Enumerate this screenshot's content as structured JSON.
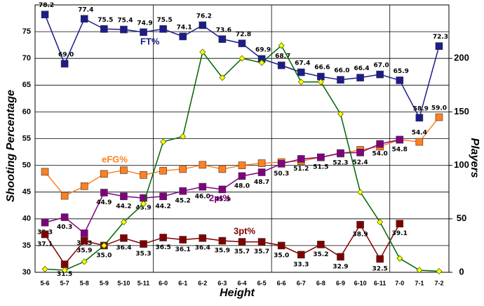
{
  "chart_data": {
    "type": "line",
    "xlabel": "Height",
    "ylabel": "Shooting Percentage",
    "categories": [
      "5-6",
      "5-7",
      "5-8",
      "5-9",
      "5-10",
      "5-11",
      "6-0",
      "6-1",
      "6-2",
      "6-3",
      "6-4",
      "6-5",
      "6-6",
      "6-7",
      "6-8",
      "6-9",
      "6-10",
      "6-11",
      "7-0",
      "7-1",
      "7-2"
    ],
    "ylim": [
      30,
      80
    ],
    "yticks": [
      30,
      35,
      40,
      45,
      50,
      55,
      60,
      65,
      70,
      75
    ],
    "y2lim": [
      0,
      250
    ],
    "y2ticks": [
      0,
      50,
      100,
      150,
      200
    ],
    "grid": true,
    "series": [
      {
        "name": "FT%",
        "color": "#1c1c8c",
        "marker": "square",
        "values": [
          78.2,
          69.0,
          77.4,
          75.5,
          75.4,
          74.9,
          75.5,
          74.1,
          76.2,
          73.6,
          72.8,
          69.9,
          68.7,
          67.4,
          66.6,
          66.0,
          66.4,
          67.0,
          65.9,
          58.9,
          72.3
        ],
        "value_labels": [
          "78.2",
          "69.0",
          "77.4",
          "75.5",
          "75.4",
          "74.9",
          "75.5",
          "74.1",
          "76.2",
          "73.6",
          "72.8",
          "69.9",
          "68.7",
          "67.4",
          "66.6",
          "66.0",
          "66.4",
          "67.0",
          "65.9",
          "58.9",
          "72.3"
        ]
      },
      {
        "name": "eFG%",
        "color": "#ff8020",
        "marker": "square",
        "values": [
          48.8,
          44.3,
          46.1,
          48.4,
          49.1,
          48.2,
          49.0,
          49.3,
          50.1,
          49.3,
          50.0,
          50.4,
          50.6,
          50.8,
          51.5,
          52.2,
          52.9,
          53.5,
          54.8,
          54.4,
          59.0
        ],
        "value_labels": [
          null,
          null,
          null,
          null,
          null,
          null,
          null,
          null,
          null,
          null,
          null,
          null,
          null,
          null,
          null,
          null,
          null,
          null,
          null,
          "54.4",
          "59.0"
        ]
      },
      {
        "name": "2pt%",
        "color": "#800080",
        "marker": "square",
        "values": [
          39.3,
          40.3,
          37.3,
          44.9,
          44.2,
          43.9,
          44.2,
          45.2,
          46.0,
          45.5,
          48.0,
          48.7,
          50.3,
          51.2,
          51.5,
          52.3,
          52.4,
          54.0,
          54.8,
          null,
          null
        ],
        "value_labels": [
          "39.3",
          "40.3",
          "37.3",
          "44.9",
          "44.2",
          "43.9",
          "44.2",
          "45.2",
          "46.0",
          "45.5",
          "48.0",
          "48.7",
          "50.3",
          "51.2",
          "51.5",
          "52.3",
          "52.4",
          "54.0",
          "54.8",
          null,
          null
        ]
      },
      {
        "name": "3pt%",
        "color": "#800000",
        "marker": "square",
        "values": [
          37.1,
          31.5,
          35.9,
          35.0,
          36.4,
          35.3,
          36.5,
          36.1,
          36.4,
          35.9,
          35.7,
          35.7,
          35.0,
          33.3,
          35.2,
          32.9,
          38.9,
          32.5,
          39.1,
          null,
          null
        ],
        "value_labels": [
          "37.1",
          "31.5",
          "35.9",
          "35.0",
          "36.4",
          "35.3",
          "36.5",
          "36.1",
          "36.4",
          "35.9",
          "35.7",
          "35.7",
          "35.0",
          "33.3",
          "35.2",
          "32.9",
          "38.9",
          "32.5",
          "39.1",
          null,
          null
        ]
      },
      {
        "name": "Players",
        "color": "#006400",
        "marker": "diamond",
        "axis": "y2",
        "values": [
          3,
          2,
          10,
          25,
          47,
          64,
          122,
          127,
          206,
          182,
          200,
          196,
          212,
          178,
          178,
          148,
          75,
          47,
          13,
          2,
          1
        ]
      }
    ]
  }
}
